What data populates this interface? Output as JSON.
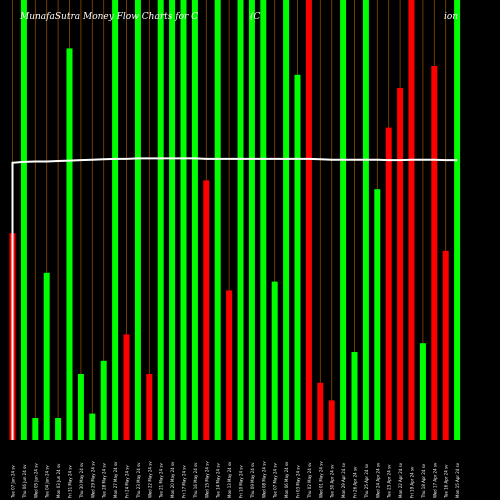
{
  "chart_data": {
    "type": "bar",
    "title_parts": [
      "MunafaSutra  Money Flow  Charts for C",
      "(C",
      "ion"
    ],
    "colors": {
      "up": "#00ff00",
      "down": "#ff0000",
      "line": "#ffffff",
      "grid": "#8a4a00",
      "background": "#000000"
    },
    "ylim": [
      0,
      100
    ],
    "line_ylim": [
      0,
      100
    ],
    "categories": [
      "Tue 07 Jun 24 sv",
      "Thu 06 Jun 24 sv",
      "Wed 05 Jun 24 sv",
      "Tue 04 Jun 24 sv",
      "Mon 03 Jun 24 sv",
      "Fri 31 May 24 sv",
      "Thu 30 May 24 sv",
      "Wed 29 May 24 sv",
      "Tue 28 May 24 sv",
      "Mon 27 May 24 sv",
      "Fri 24 May 24 sv",
      "Thu 23 May 24 sv",
      "Wed 22 May 24 sv",
      "Tue 21 May 24 sv",
      "Mon 20 May 24 sv",
      "Fri 17 May 24 sv",
      "Thu 16 May 24 sv",
      "Wed 15 May 24 sv",
      "Tue 14 May 24 sv",
      "Mon 13 May 24 sv",
      "Fri 10 May 24 sv",
      "Thu 09 May 24 sv",
      "Wed 08 May 24 sv",
      "Tue 07 May 24 sv",
      "Mon 06 May 24 sv",
      "Fri 03 May 24 sv",
      "Thu 02 May 24 sv",
      "Wed 01 May 24 sv",
      "Tue 30 Apr 24 sv",
      "Mon 29 Apr 24 sv",
      "Fri 26 Apr 24 sv",
      "Thu 25 Apr 24 sv",
      "Wed 24 Apr 24 sv",
      "Tue 23 Apr 24 sv",
      "Mon 22 Apr 24 sv",
      "Fri 19 Apr 24 sv",
      "Thu 18 Apr 24 sv",
      "Wed 17 Apr 24 sv",
      "Tue 16 Apr 24 sv",
      "Mon 15 Apr 24 sv"
    ],
    "values": [
      47,
      100,
      5,
      38,
      5,
      89,
      15,
      6,
      18,
      100,
      24,
      100,
      15,
      100,
      100,
      100,
      100,
      59,
      100,
      34,
      100,
      100,
      100,
      36,
      100,
      83,
      100,
      13,
      9,
      100,
      20,
      100,
      57,
      71,
      80,
      100,
      22,
      85,
      43,
      100
    ],
    "directions": [
      "down",
      "up",
      "up",
      "up",
      "up",
      "up",
      "up",
      "up",
      "up",
      "up",
      "down",
      "up",
      "down",
      "up",
      "up",
      "up",
      "up",
      "down",
      "up",
      "down",
      "up",
      "up",
      "up",
      "up",
      "up",
      "up",
      "down",
      "down",
      "down",
      "up",
      "up",
      "up",
      "up",
      "down",
      "down",
      "down",
      "up",
      "down",
      "down",
      "up"
    ],
    "line_values": [
      63,
      63.2,
      63.3,
      63.3,
      63.4,
      63.5,
      63.6,
      63.7,
      63.8,
      63.9,
      63.9,
      64,
      64,
      64,
      64,
      64,
      64,
      63.9,
      63.9,
      63.9,
      63.9,
      63.9,
      63.9,
      63.9,
      63.9,
      63.9,
      63.9,
      63.8,
      63.7,
      63.7,
      63.7,
      63.7,
      63.7,
      63.6,
      63.6,
      63.7,
      63.7,
      63.7,
      63.6,
      63.6
    ]
  }
}
